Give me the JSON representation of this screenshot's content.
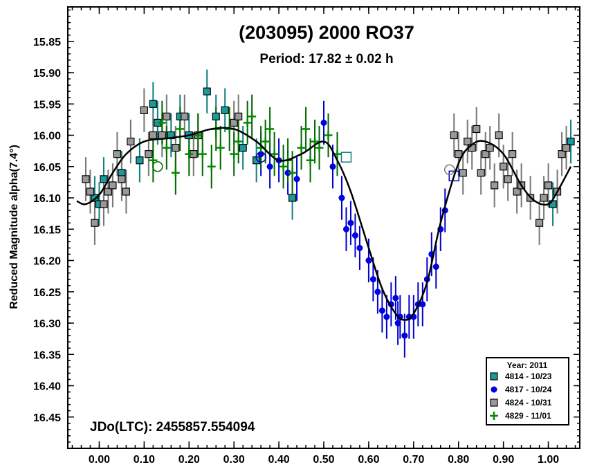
{
  "chart_data": {
    "type": "scatter",
    "title": "(203095) 2000 RO37",
    "subtitle": "Period: 17.82 ± 0.02 h",
    "xlabel": "",
    "ylabel": "Reduced Magnitude alpha(7.4°)",
    "xlim": [
      -0.07,
      1.07
    ],
    "ylim": [
      15.795,
      16.5
    ],
    "y_inverted": true,
    "x_ticks": [
      0.0,
      0.1,
      0.2,
      0.3,
      0.4,
      0.5,
      0.6,
      0.7,
      0.8,
      0.9,
      1.0
    ],
    "x_tick_labels": [
      "0.00",
      "0.10",
      "0.20",
      "0.30",
      "0.40",
      "0.50",
      "0.60",
      "0.70",
      "0.80",
      "0.90",
      "1.00"
    ],
    "y_ticks": [
      15.85,
      15.9,
      15.95,
      16.0,
      16.05,
      16.1,
      16.15,
      16.2,
      16.25,
      16.3,
      16.35,
      16.4,
      16.45
    ],
    "y_tick_labels": [
      "15.85",
      "15.90",
      "15.95",
      "16.00",
      "16.05",
      "16.10",
      "16.15",
      "16.20",
      "16.25",
      "16.30",
      "16.35",
      "16.40",
      "16.45"
    ],
    "annotation": "JDo(LTC): 2455857.554094",
    "legend": {
      "title": "Year: 2011",
      "position": "bottom-right",
      "entries": [
        "4814 - 10/23",
        "4817 - 10/24",
        "4824 - 10/31",
        "4829 - 11/01"
      ]
    },
    "fit_curve": {
      "name": "Fourier fit",
      "x": [
        -0.05,
        -0.03,
        0.0,
        0.03,
        0.06,
        0.1,
        0.15,
        0.2,
        0.25,
        0.3,
        0.35,
        0.4,
        0.45,
        0.5,
        0.53,
        0.56,
        0.6,
        0.63,
        0.66,
        0.68,
        0.7,
        0.73,
        0.76,
        0.8,
        0.83,
        0.86,
        0.9,
        0.94,
        0.97,
        1.0,
        1.02,
        1.05
      ],
      "y": [
        16.105,
        16.11,
        16.095,
        16.06,
        16.03,
        16.01,
        16.005,
        16.0,
        15.99,
        15.99,
        16.01,
        16.04,
        16.03,
        16.01,
        16.04,
        16.09,
        16.18,
        16.245,
        16.285,
        16.295,
        16.285,
        16.235,
        16.14,
        16.045,
        16.015,
        16.01,
        16.03,
        16.08,
        16.105,
        16.11,
        16.09,
        16.05
      ]
    },
    "series": [
      {
        "name": "4814 - 10/23",
        "marker": "square",
        "color": "#0f7f7f",
        "fill": "#1a9a9a",
        "x": [
          -0.01,
          0.0,
          0.01,
          0.05,
          0.09,
          0.12,
          0.13,
          0.16,
          0.18,
          0.2,
          0.24,
          0.26,
          0.28,
          0.32,
          0.35,
          0.43,
          1.01,
          1.05
        ],
        "y": [
          16.1,
          16.11,
          16.07,
          16.06,
          16.04,
          15.95,
          15.98,
          16.0,
          15.97,
          16.0,
          15.93,
          15.97,
          15.96,
          16.02,
          16.04,
          16.1,
          16.11,
          16.01
        ],
        "err": [
          0.035,
          0.035,
          0.035,
          0.035,
          0.035,
          0.035,
          0.035,
          0.035,
          0.035,
          0.035,
          0.035,
          0.035,
          0.035,
          0.035,
          0.035,
          0.035,
          0.035,
          0.035
        ]
      },
      {
        "name": "4817 - 10/24",
        "marker": "circle",
        "color": "#0000cc",
        "fill": "#0000ee",
        "x": [
          0.36,
          0.38,
          0.4,
          0.42,
          0.44,
          0.5,
          0.52,
          0.54,
          0.55,
          0.56,
          0.57,
          0.58,
          0.6,
          0.61,
          0.62,
          0.63,
          0.64,
          0.65,
          0.66,
          0.665,
          0.67,
          0.68,
          0.69,
          0.7,
          0.71,
          0.72,
          0.73,
          0.74,
          0.75,
          0.76,
          0.77
        ],
        "y": [
          16.03,
          16.05,
          16.04,
          16.06,
          16.07,
          15.98,
          16.05,
          16.1,
          16.15,
          16.14,
          16.16,
          16.18,
          16.2,
          16.23,
          16.25,
          16.28,
          16.29,
          16.27,
          16.26,
          16.3,
          16.29,
          16.32,
          16.29,
          16.29,
          16.27,
          16.27,
          16.23,
          16.19,
          16.21,
          16.15,
          16.12
        ],
        "err": [
          0.035,
          0.035,
          0.035,
          0.035,
          0.035,
          0.035,
          0.035,
          0.035,
          0.035,
          0.035,
          0.035,
          0.035,
          0.035,
          0.035,
          0.035,
          0.035,
          0.035,
          0.035,
          0.035,
          0.035,
          0.035,
          0.035,
          0.035,
          0.035,
          0.035,
          0.035,
          0.035,
          0.035,
          0.035,
          0.035,
          0.035
        ]
      },
      {
        "name": "4824 - 10/31",
        "marker": "square",
        "color": "#777777",
        "fill": "#999999",
        "x": [
          -0.03,
          -0.02,
          -0.01,
          0.01,
          0.02,
          0.03,
          0.04,
          0.05,
          0.06,
          0.07,
          0.1,
          0.11,
          0.12,
          0.14,
          0.15,
          0.17,
          0.19,
          0.21,
          0.22,
          0.3,
          0.31,
          0.79,
          0.8,
          0.81,
          0.82,
          0.83,
          0.84,
          0.85,
          0.86,
          0.87,
          0.88,
          0.89,
          0.9,
          0.91,
          0.92,
          0.93,
          0.94,
          0.96,
          0.98,
          0.99,
          1.0,
          1.02,
          1.03,
          1.04
        ],
        "y": [
          16.07,
          16.09,
          16.14,
          16.11,
          16.09,
          16.08,
          16.03,
          16.07,
          16.09,
          16.01,
          15.96,
          16.03,
          16.0,
          16.0,
          15.97,
          16.02,
          15.97,
          16.03,
          16.0,
          15.98,
          15.97,
          16.0,
          16.03,
          16.06,
          16.01,
          16.02,
          15.99,
          16.06,
          16.03,
          16.02,
          16.08,
          16.0,
          16.05,
          16.07,
          16.03,
          16.09,
          16.08,
          16.1,
          16.14,
          16.1,
          16.08,
          16.09,
          16.03,
          16.02
        ],
        "err": [
          0.035,
          0.035,
          0.035,
          0.035,
          0.035,
          0.035,
          0.035,
          0.035,
          0.035,
          0.035,
          0.035,
          0.035,
          0.035,
          0.035,
          0.035,
          0.035,
          0.035,
          0.035,
          0.035,
          0.035,
          0.035,
          0.035,
          0.035,
          0.035,
          0.035,
          0.035,
          0.035,
          0.035,
          0.035,
          0.035,
          0.035,
          0.035,
          0.035,
          0.035,
          0.035,
          0.035,
          0.035,
          0.035,
          0.035,
          0.035,
          0.035,
          0.035,
          0.035,
          0.035
        ]
      },
      {
        "name": "4829 - 11/01",
        "marker": "plus",
        "color": "#006600",
        "fill": "#008800",
        "x": [
          0.12,
          0.14,
          0.15,
          0.17,
          0.18,
          0.2,
          0.22,
          0.23,
          0.25,
          0.26,
          0.27,
          0.29,
          0.3,
          0.31,
          0.33,
          0.34,
          0.36,
          0.37,
          0.38,
          0.39,
          0.41,
          0.42,
          0.43,
          0.45,
          0.46,
          0.47,
          0.48,
          0.49,
          0.51,
          0.53
        ],
        "y": [
          16.04,
          15.98,
          16.02,
          16.06,
          15.99,
          16.03,
          16.0,
          16.03,
          16.05,
          15.99,
          16.02,
          15.99,
          16.03,
          16.01,
          15.98,
          15.97,
          16.02,
          16.01,
          15.99,
          16.03,
          16.05,
          16.04,
          16.06,
          16.02,
          15.99,
          16.04,
          16.01,
          16.02,
          16.0,
          16.03
        ],
        "err": [
          0.035,
          0.035,
          0.035,
          0.035,
          0.035,
          0.035,
          0.035,
          0.035,
          0.035,
          0.035,
          0.035,
          0.035,
          0.035,
          0.035,
          0.035,
          0.035,
          0.035,
          0.035,
          0.035,
          0.035,
          0.035,
          0.035,
          0.035,
          0.035,
          0.035,
          0.035,
          0.035,
          0.035,
          0.035,
          0.035
        ]
      }
    ],
    "highlighted_points": [
      {
        "series": "4814 - 10/23",
        "marker": "square",
        "x": 0.55,
        "y": 16.035
      },
      {
        "series": "4817 - 10/24",
        "marker": "circle",
        "x": 0.36,
        "y": 16.035
      },
      {
        "series": "4817 - 10/24",
        "marker": "square",
        "x": 0.79,
        "y": 16.065
      },
      {
        "series": "4824 - 10/31",
        "marker": "circle",
        "x": 0.78,
        "y": 16.055
      },
      {
        "series": "4829 - 11/01",
        "marker": "circle",
        "x": 0.13,
        "y": 16.05
      }
    ]
  }
}
